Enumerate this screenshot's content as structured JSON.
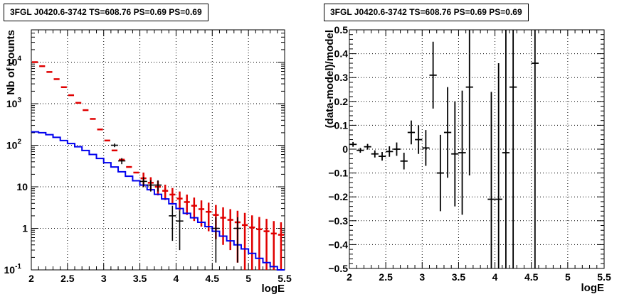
{
  "chart_data": [
    {
      "type": "histogram-with-errors",
      "title": "3FGL J0420.6-3742 TS=608.76 PS=0.69 PS=0.69",
      "xlabel": "logE",
      "ylabel": "Nb of counts",
      "xlim": [
        2,
        5.5
      ],
      "ylim": [
        0.1,
        60000
      ],
      "yscale": "log",
      "grid": true,
      "x_ticks": [
        "2",
        "2.5",
        "3",
        "3.5",
        "4",
        "4.5",
        "5",
        "5.5"
      ],
      "y_ticks": [
        {
          "v": 0.1,
          "base": "10",
          "exp": "-1"
        },
        {
          "v": 1,
          "base": "1",
          "exp": ""
        },
        {
          "v": 10,
          "base": "10",
          "exp": ""
        },
        {
          "v": 100,
          "base": "10",
          "exp": "2"
        },
        {
          "v": 1000,
          "base": "10",
          "exp": "3"
        },
        {
          "v": 10000,
          "base": "10",
          "exp": "4"
        }
      ],
      "colors": {
        "model_total": "#e00000",
        "model_source": "#0000ee",
        "data": "#000000"
      },
      "bin_edges": [
        2.0,
        2.1,
        2.2,
        2.3,
        2.4,
        2.5,
        2.6,
        2.7,
        2.8,
        2.9,
        3.0,
        3.1,
        3.2,
        3.3,
        3.4,
        3.5,
        3.6,
        3.7,
        3.8,
        3.9,
        4.0,
        4.1,
        4.2,
        4.3,
        4.4,
        4.5,
        4.6,
        4.7,
        4.8,
        4.9,
        5.0,
        5.1,
        5.2,
        5.3,
        5.4,
        5.5
      ],
      "series": [
        {
          "kind": "model_total",
          "values": [
            10000,
            8000,
            5800,
            3900,
            2500,
            1600,
            1050,
            700,
            430,
            240,
            130,
            75,
            45,
            30,
            22,
            16,
            12.5,
            10,
            8,
            6.5,
            5.2,
            4.3,
            3.5,
            2.9,
            2.5,
            2.1,
            1.8,
            1.6,
            1.4,
            1.2,
            1.05,
            0.95,
            0.85,
            0.75,
            0.7
          ],
          "err_lo": [
            0,
            0,
            0,
            0,
            0,
            0,
            0,
            0,
            0,
            0,
            0,
            0,
            0,
            0,
            0,
            6,
            4.5,
            3.8,
            3.2,
            2.8,
            2.5,
            2.2,
            2.0,
            1.8,
            1.65,
            1.55,
            1.4,
            1.3,
            1.25,
            1.15,
            1.0,
            0.93,
            0.84,
            0.75,
            0.7
          ],
          "err_hi": [
            0,
            0,
            0,
            0,
            0,
            0,
            0,
            0,
            0,
            0,
            0,
            0,
            0,
            0,
            0,
            6,
            4.5,
            3.8,
            3.2,
            2.8,
            2.5,
            2.2,
            2.0,
            1.8,
            1.65,
            1.55,
            1.4,
            1.3,
            1.25,
            1.15,
            1.0,
            0.93,
            0.84,
            0.75,
            0.7
          ]
        },
        {
          "kind": "model_source",
          "values": [
            210,
            200,
            180,
            155,
            130,
            110,
            92,
            75,
            60,
            48,
            38,
            30,
            23,
            18,
            14,
            11,
            8.5,
            6.6,
            5.1,
            3.9,
            3.0,
            2.3,
            1.8,
            1.4,
            1.1,
            0.85,
            0.65,
            0.5,
            0.4,
            0.32,
            0.25,
            0.19,
            0.15,
            0.12,
            0.1
          ]
        },
        {
          "kind": "data",
          "x": [
            2.85,
            2.95,
            3.05,
            3.15,
            3.25,
            3.35,
            3.45,
            3.55,
            3.65,
            3.75,
            3.85,
            3.95,
            4.05,
            4.15,
            4.25,
            4.35,
            4.45,
            4.55,
            4.65,
            4.75,
            4.85
          ],
          "y": [
            460,
            250,
            130,
            100,
            42,
            32,
            20,
            13.5,
            11,
            11,
            6,
            2,
            1.5,
            1.0,
            1.3,
            1.0,
            1.0,
            1.0,
            1.0,
            1.0,
            1.0
          ],
          "err_lo": [
            22,
            16,
            11,
            10,
            7,
            6,
            4.5,
            3.7,
            3.3,
            3.3,
            2.5,
            1.5,
            1.2,
            0.85,
            1.0,
            0.85,
            0.85,
            0.85,
            0.85,
            0.85,
            0.85
          ],
          "err_hi": [
            22,
            16,
            11,
            10,
            7,
            6,
            4.5,
            3.7,
            3.3,
            3.3,
            2.5,
            1.5,
            1.2,
            0.85,
            1.0,
            0.85,
            0.85,
            0.85,
            0.85,
            0.85,
            0.85
          ],
          "drawn": [
            false,
            false,
            false,
            true,
            true,
            false,
            false,
            true,
            true,
            true,
            false,
            true,
            true,
            false,
            false,
            false,
            false,
            true,
            false,
            false,
            true
          ]
        }
      ]
    },
    {
      "type": "scatter-with-errors",
      "title": "3FGL J0420.6-3742 TS=608.76 PS=0.69 PS=0.69",
      "xlabel": "logE",
      "ylabel": "(data-model)/model",
      "xlim": [
        2,
        5.5
      ],
      "ylim": [
        -0.5,
        0.5
      ],
      "grid": true,
      "x_ticks": [
        "2",
        "2.5",
        "3",
        "3.5",
        "4",
        "4.5",
        "5",
        "5.5"
      ],
      "y_ticks": [
        "0.5",
        "0.4",
        "0.3",
        "0.2",
        "0.1",
        "0",
        "−0.1",
        "−0.2",
        "−0.3",
        "−0.4",
        "−0.5"
      ],
      "points": {
        "x": [
          2.05,
          2.15,
          2.25,
          2.35,
          2.45,
          2.55,
          2.65,
          2.75,
          2.85,
          2.95,
          3.05,
          3.15,
          3.25,
          3.35,
          3.45,
          3.55,
          3.65,
          3.95,
          4.05,
          4.15,
          4.25,
          4.55
        ],
        "y": [
          0.02,
          -0.005,
          0.01,
          -0.02,
          -0.03,
          -0.01,
          0.0,
          -0.05,
          0.07,
          0.04,
          0.005,
          0.31,
          -0.1,
          0.07,
          -0.02,
          -0.015,
          0.26,
          -0.21,
          -0.21,
          -0.015,
          0.26,
          0.36
        ],
        "err": [
          0.01,
          0.01,
          0.012,
          0.015,
          0.018,
          0.022,
          0.028,
          0.035,
          0.05,
          0.06,
          0.075,
          0.14,
          0.16,
          0.19,
          0.22,
          0.26,
          0.37,
          0.45,
          0.57,
          0.7,
          0.85,
          1.0
        ]
      }
    }
  ]
}
